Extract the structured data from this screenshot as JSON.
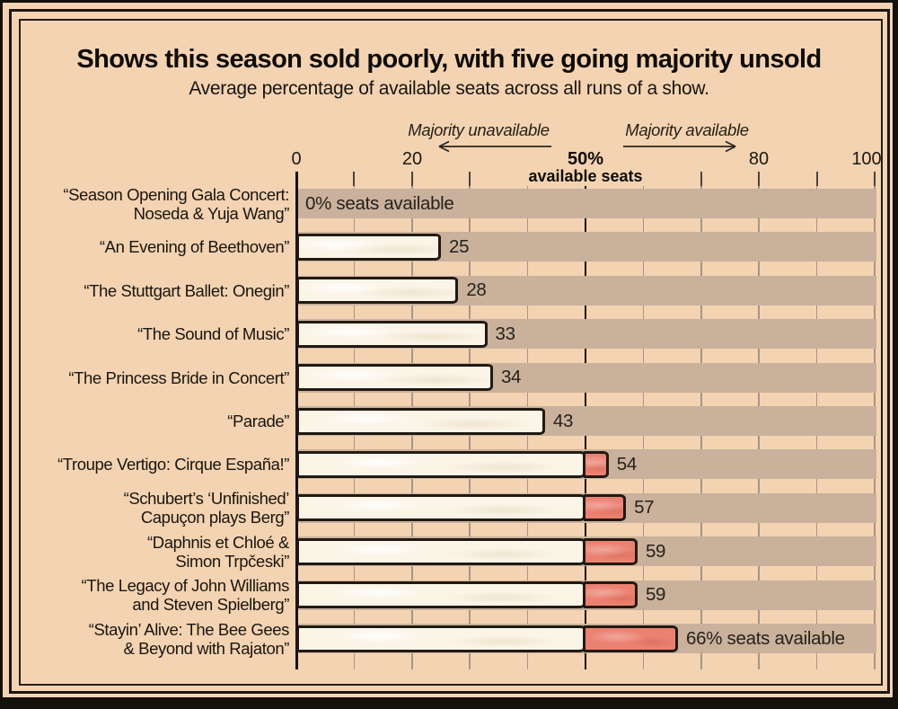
{
  "header": {
    "title": "Shows this season sold poorly, with five going majority unsold",
    "subtitle": "Average percentage of available seats across all runs of a show."
  },
  "colors": {
    "paper": "#f3d3b2",
    "row_band": "#c9b19c",
    "bar_fill": "#fbf5e8",
    "bar_overflow_fill": "#eb8171",
    "outline_ink": "#211a12",
    "gridline": "#a6958a",
    "threshold_line": "#16110c"
  },
  "chart_data": {
    "type": "bar",
    "orientation": "horizontal",
    "title": "Shows this season sold poorly, with five going majority unsold",
    "subtitle": "Average percentage of available seats across all runs of a show.",
    "xlabel": "available seats",
    "xlim": [
      0,
      100
    ],
    "gridline_step": 10,
    "grid": true,
    "threshold": 50,
    "axis_ticks": [
      {
        "value": 0,
        "label": "0"
      },
      {
        "value": 20,
        "label": "20"
      },
      {
        "value": 50,
        "label": "50%",
        "sub_label": "available seats",
        "bold": true
      },
      {
        "value": 80,
        "label": "80"
      },
      {
        "value": 100,
        "label": "100"
      }
    ],
    "annotations": [
      {
        "text": "Majority unavailable",
        "direction": "left"
      },
      {
        "text": "Majority available",
        "direction": "right"
      }
    ],
    "categories": [
      "“Season Opening Gala Concert: Noseda & Yuja Wang”",
      "“An Evening of Beethoven”",
      "“The Stuttgart Ballet: Onegin”",
      "“The Sound of Music”",
      "“The Princess Bride in Concert”",
      "“Parade”",
      "“Troupe Vertigo: Cirque España!”",
      "“Schubert’s ‘Unfinished’ Capuçon plays Berg”",
      "“Daphnis et Chloé & Simon Trpčeski”",
      "“The Legacy of John Williams and Steven Spielberg”",
      "“Stayin’ Alive: The Bee Gees & Beyond with Rajaton”"
    ],
    "values": [
      0,
      25,
      28,
      33,
      34,
      43,
      54,
      57,
      59,
      59,
      66
    ],
    "rows": [
      {
        "label_lines": [
          "“Season Opening Gala Concert:",
          "Noseda & Yuja Wang”"
        ],
        "value": 0,
        "value_label": "0% seats available"
      },
      {
        "label_lines": [
          "“An Evening of Beethoven”"
        ],
        "value": 25,
        "value_label": "25"
      },
      {
        "label_lines": [
          "“The Stuttgart Ballet: Onegin”"
        ],
        "value": 28,
        "value_label": "28"
      },
      {
        "label_lines": [
          "“The Sound of Music”"
        ],
        "value": 33,
        "value_label": "33"
      },
      {
        "label_lines": [
          "“The Princess Bride in Concert”"
        ],
        "value": 34,
        "value_label": "34"
      },
      {
        "label_lines": [
          "“Parade”"
        ],
        "value": 43,
        "value_label": "43"
      },
      {
        "label_lines": [
          "“Troupe Vertigo: Cirque España!”"
        ],
        "value": 54,
        "value_label": "54"
      },
      {
        "label_lines": [
          "“Schubert’s ‘Unfinished’",
          "Capuçon plays Berg”"
        ],
        "value": 57,
        "value_label": "57"
      },
      {
        "label_lines": [
          "“Daphnis et Chloé &",
          "Simon Trpčeski”"
        ],
        "value": 59,
        "value_label": "59"
      },
      {
        "label_lines": [
          "“The Legacy of John Williams",
          "and Steven Spielberg”"
        ],
        "value": 59,
        "value_label": "59"
      },
      {
        "label_lines": [
          "“Stayin’ Alive: The Bee Gees",
          "& Beyond with Rajaton”"
        ],
        "value": 66,
        "value_label": "66% seats available"
      }
    ]
  }
}
